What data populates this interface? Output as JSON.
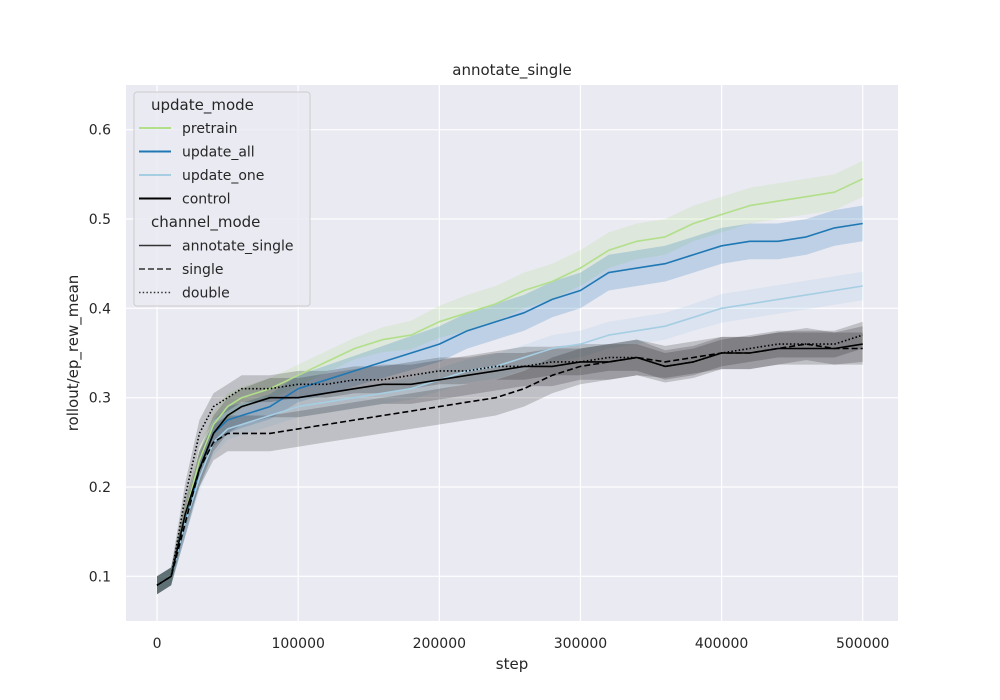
{
  "chart_data": {
    "type": "line",
    "title": "annotate_single",
    "xlabel": "step",
    "ylabel": "rollout/ep_rew_mean",
    "xlim": [
      -22000,
      525000
    ],
    "ylim": [
      0.05,
      0.65
    ],
    "xticks": [
      0,
      100000,
      200000,
      300000,
      400000,
      500000
    ],
    "xtick_labels": [
      "0",
      "100000",
      "200000",
      "300000",
      "400000",
      "500000"
    ],
    "yticks": [
      0.1,
      0.2,
      0.3,
      0.4,
      0.5,
      0.6
    ],
    "ytick_labels": [
      "0.1",
      "0.2",
      "0.3",
      "0.4",
      "0.5",
      "0.6"
    ],
    "grid": true,
    "legend_position": "top-left",
    "legend": {
      "hue_title": "update_mode",
      "hue_entries": [
        {
          "name": "pretrain",
          "color": "#b2df8a"
        },
        {
          "name": "update_all",
          "color": "#1f78b4"
        },
        {
          "name": "update_one",
          "color": "#a6cee3"
        },
        {
          "name": "control",
          "color": "#000000"
        }
      ],
      "style_title": "channel_mode",
      "style_entries": [
        {
          "name": "annotate_single",
          "dash": "solid"
        },
        {
          "name": "single",
          "dash": "dashed"
        },
        {
          "name": "double",
          "dash": "dotted"
        }
      ]
    },
    "series": [
      {
        "name": "pretrain",
        "hue": "pretrain",
        "style": "annotate_single",
        "x": [
          0,
          10000,
          20000,
          30000,
          40000,
          50000,
          60000,
          80000,
          100000,
          120000,
          140000,
          160000,
          180000,
          200000,
          220000,
          240000,
          260000,
          280000,
          300000,
          320000,
          340000,
          360000,
          380000,
          400000,
          420000,
          440000,
          460000,
          480000,
          500000
        ],
        "y": [
          0.09,
          0.1,
          0.17,
          0.23,
          0.27,
          0.29,
          0.3,
          0.31,
          0.325,
          0.34,
          0.355,
          0.365,
          0.37,
          0.385,
          0.395,
          0.405,
          0.42,
          0.43,
          0.445,
          0.465,
          0.475,
          0.48,
          0.495,
          0.505,
          0.515,
          0.52,
          0.525,
          0.53,
          0.545
        ],
        "band": [
          0.01,
          0.01,
          0.015,
          0.015,
          0.015,
          0.015,
          0.012,
          0.012,
          0.012,
          0.012,
          0.012,
          0.014,
          0.016,
          0.018,
          0.02,
          0.02,
          0.02,
          0.02,
          0.02,
          0.02,
          0.02,
          0.02,
          0.02,
          0.02,
          0.02,
          0.02,
          0.02,
          0.02,
          0.02
        ]
      },
      {
        "name": "update_all",
        "hue": "update_all",
        "style": "annotate_single",
        "x": [
          0,
          10000,
          20000,
          30000,
          40000,
          50000,
          60000,
          80000,
          100000,
          120000,
          140000,
          160000,
          180000,
          200000,
          220000,
          240000,
          260000,
          280000,
          300000,
          320000,
          340000,
          360000,
          380000,
          400000,
          420000,
          440000,
          460000,
          480000,
          500000
        ],
        "y": [
          0.09,
          0.1,
          0.16,
          0.22,
          0.26,
          0.275,
          0.28,
          0.29,
          0.31,
          0.32,
          0.33,
          0.34,
          0.35,
          0.36,
          0.375,
          0.385,
          0.395,
          0.41,
          0.42,
          0.44,
          0.445,
          0.45,
          0.46,
          0.47,
          0.475,
          0.475,
          0.48,
          0.49,
          0.495
        ],
        "band": [
          0.01,
          0.01,
          0.015,
          0.015,
          0.015,
          0.015,
          0.014,
          0.014,
          0.015,
          0.016,
          0.017,
          0.018,
          0.019,
          0.02,
          0.02,
          0.02,
          0.02,
          0.02,
          0.02,
          0.02,
          0.02,
          0.02,
          0.02,
          0.02,
          0.02,
          0.02,
          0.02,
          0.02,
          0.02
        ]
      },
      {
        "name": "update_one",
        "hue": "update_one",
        "style": "annotate_single",
        "x": [
          0,
          10000,
          20000,
          30000,
          40000,
          50000,
          60000,
          80000,
          100000,
          120000,
          140000,
          160000,
          180000,
          200000,
          220000,
          240000,
          260000,
          280000,
          300000,
          320000,
          340000,
          360000,
          380000,
          400000,
          420000,
          440000,
          460000,
          480000,
          500000
        ],
        "y": [
          0.09,
          0.1,
          0.16,
          0.21,
          0.25,
          0.265,
          0.27,
          0.28,
          0.29,
          0.295,
          0.3,
          0.305,
          0.31,
          0.32,
          0.33,
          0.335,
          0.345,
          0.355,
          0.36,
          0.37,
          0.375,
          0.38,
          0.39,
          0.4,
          0.405,
          0.41,
          0.415,
          0.42,
          0.425
        ],
        "band": [
          0.01,
          0.01,
          0.015,
          0.015,
          0.015,
          0.012,
          0.012,
          0.012,
          0.012,
          0.012,
          0.012,
          0.012,
          0.012,
          0.013,
          0.013,
          0.014,
          0.014,
          0.015,
          0.015,
          0.015,
          0.015,
          0.015,
          0.015,
          0.016,
          0.016,
          0.016,
          0.016,
          0.016,
          0.016
        ]
      },
      {
        "name": "control",
        "hue": "control",
        "style": "annotate_single",
        "x": [
          0,
          10000,
          20000,
          30000,
          40000,
          50000,
          60000,
          80000,
          100000,
          120000,
          140000,
          160000,
          180000,
          200000,
          220000,
          240000,
          260000,
          280000,
          300000,
          320000,
          340000,
          360000,
          380000,
          400000,
          420000,
          440000,
          460000,
          480000,
          500000
        ],
        "y": [
          0.09,
          0.1,
          0.17,
          0.22,
          0.26,
          0.28,
          0.29,
          0.3,
          0.3,
          0.305,
          0.31,
          0.315,
          0.315,
          0.32,
          0.325,
          0.33,
          0.335,
          0.335,
          0.34,
          0.34,
          0.345,
          0.335,
          0.34,
          0.35,
          0.35,
          0.355,
          0.355,
          0.355,
          0.36
        ],
        "band": [
          0.01,
          0.01,
          0.015,
          0.02,
          0.02,
          0.02,
          0.02,
          0.022,
          0.022,
          0.022,
          0.022,
          0.022,
          0.022,
          0.022,
          0.022,
          0.022,
          0.022,
          0.022,
          0.02,
          0.02,
          0.02,
          0.018,
          0.018,
          0.018,
          0.018,
          0.018,
          0.018,
          0.018,
          0.02
        ]
      },
      {
        "name": "control",
        "hue": "control",
        "style": "single",
        "x": [
          0,
          10000,
          20000,
          30000,
          40000,
          50000,
          60000,
          80000,
          100000,
          120000,
          140000,
          160000,
          180000,
          200000,
          220000,
          240000,
          260000,
          280000,
          300000,
          320000,
          340000,
          360000,
          380000,
          400000,
          420000,
          440000,
          460000,
          480000,
          500000
        ],
        "y": [
          0.09,
          0.1,
          0.16,
          0.22,
          0.25,
          0.26,
          0.26,
          0.26,
          0.265,
          0.27,
          0.275,
          0.28,
          0.285,
          0.29,
          0.295,
          0.3,
          0.31,
          0.325,
          0.335,
          0.34,
          0.345,
          0.34,
          0.345,
          0.35,
          0.35,
          0.355,
          0.36,
          0.355,
          0.355
        ],
        "band": [
          0.01,
          0.01,
          0.015,
          0.02,
          0.02,
          0.02,
          0.02,
          0.02,
          0.02,
          0.02,
          0.02,
          0.02,
          0.02,
          0.02,
          0.02,
          0.02,
          0.02,
          0.02,
          0.02,
          0.02,
          0.02,
          0.018,
          0.018,
          0.018,
          0.018,
          0.018,
          0.018,
          0.018,
          0.018
        ]
      },
      {
        "name": "control",
        "hue": "control",
        "style": "double",
        "x": [
          0,
          10000,
          20000,
          30000,
          40000,
          50000,
          60000,
          80000,
          100000,
          120000,
          140000,
          160000,
          180000,
          200000,
          220000,
          240000,
          260000,
          280000,
          300000,
          320000,
          340000,
          360000,
          380000,
          400000,
          420000,
          440000,
          460000,
          480000,
          500000
        ],
        "y": [
          0.09,
          0.1,
          0.19,
          0.26,
          0.29,
          0.3,
          0.31,
          0.31,
          0.315,
          0.315,
          0.32,
          0.32,
          0.325,
          0.33,
          0.33,
          0.335,
          0.335,
          0.34,
          0.34,
          0.345,
          0.345,
          0.335,
          0.34,
          0.35,
          0.355,
          0.36,
          0.36,
          0.36,
          0.37
        ],
        "band": [
          0.01,
          0.01,
          0.015,
          0.015,
          0.015,
          0.015,
          0.015,
          0.015,
          0.015,
          0.015,
          0.015,
          0.015,
          0.015,
          0.015,
          0.015,
          0.015,
          0.015,
          0.015,
          0.015,
          0.015,
          0.015,
          0.015,
          0.015,
          0.015,
          0.015,
          0.015,
          0.015,
          0.015,
          0.015
        ]
      }
    ]
  }
}
